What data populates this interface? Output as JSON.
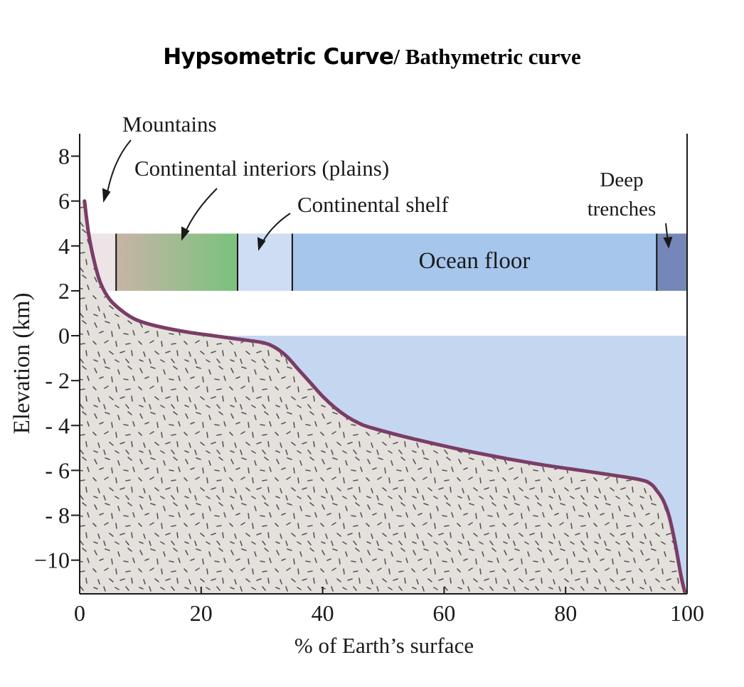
{
  "title": {
    "part1": "Hypsometric Curve",
    "separator": "/",
    "part2": "Bathymetric curve"
  },
  "chart_data": {
    "type": "area",
    "xlabel": "% of Earth’s surface",
    "ylabel": "Elevation (km)",
    "xlim": [
      0,
      100
    ],
    "ylim": [
      -11.5,
      9
    ],
    "x_ticks": [
      0,
      20,
      40,
      60,
      80,
      100
    ],
    "x_tick_labels": [
      "0",
      "20",
      "40",
      "60",
      "80",
      "100"
    ],
    "y_ticks": [
      8,
      6,
      4,
      2,
      0,
      -2,
      -4,
      -6,
      -8,
      -10
    ],
    "y_tick_labels": [
      "8",
      "6",
      "4",
      "2",
      "0",
      "- 2",
      "- 4",
      "- 6",
      "- 8",
      "−10"
    ],
    "sea_level": 0,
    "series": [
      {
        "x": [
          0.8,
          1.5,
          2.5,
          3.5,
          5,
          7,
          9,
          11,
          14,
          18,
          22,
          26,
          30,
          32,
          34,
          36,
          38,
          40,
          42,
          44,
          46,
          48,
          55,
          65,
          75,
          85,
          92,
          94,
          95,
          96,
          97,
          98,
          99,
          99.6
        ],
        "y": [
          6,
          4.5,
          3.2,
          2.3,
          1.6,
          1.1,
          0.75,
          0.55,
          0.35,
          0.15,
          0.0,
          -0.15,
          -0.3,
          -0.5,
          -0.9,
          -1.5,
          -2.1,
          -2.7,
          -3.2,
          -3.6,
          -3.9,
          -4.1,
          -4.6,
          -5.2,
          -5.7,
          -6.1,
          -6.4,
          -6.6,
          -6.9,
          -7.3,
          -8.0,
          -9.2,
          -10.7,
          -11.4
        ]
      }
    ],
    "bands": [
      {
        "name": "mountains",
        "from": 0,
        "to": 6,
        "color": "#ece4e6"
      },
      {
        "name": "continental interiors",
        "from": 6,
        "to": 26,
        "color_start": "#c8b4a6",
        "color_end": "#79c27d"
      },
      {
        "name": "continental shelf",
        "from": 26,
        "to": 35,
        "color": "#cfddf3"
      },
      {
        "name": "ocean floor",
        "from": 35,
        "to": 95,
        "color": "#a6c6ec"
      },
      {
        "name": "deep trenches",
        "from": 95,
        "to": 100,
        "color": "#7587b8"
      }
    ],
    "band_ylim": [
      2,
      4.55
    ],
    "annotations": {
      "mountains": "Mountains",
      "interiors": "Continental interiors (plains)",
      "shelf": "Continental shelf",
      "ocean_floor": "Ocean floor",
      "trenches_line1": "Deep",
      "trenches_line2": "trenches"
    },
    "colors": {
      "curve": "#7a3d66",
      "ocean": "#c5d6f0",
      "land": "#e4e0dc",
      "speckle": "#555555"
    }
  }
}
